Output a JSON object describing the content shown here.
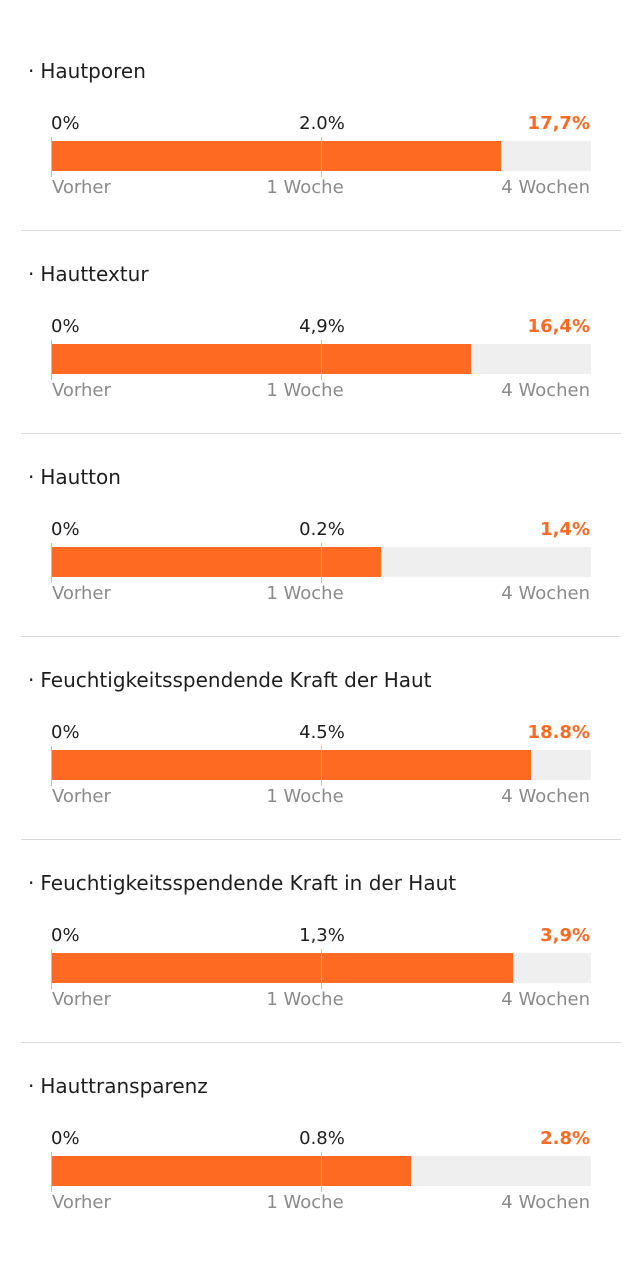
{
  "colors": {
    "accent": "#ff6a23",
    "track": "#efefef",
    "label": "#8a8a8a",
    "divider": "#d9d9d9"
  },
  "bullet": "·",
  "labels": {
    "start": "Vorher",
    "mid": "1 Woche",
    "end": "4 Wochen"
  },
  "chart_data": {
    "type": "bar",
    "orientation": "horizontal",
    "categories": [
      "Vorher",
      "1 Woche",
      "4 Wochen"
    ],
    "series": [
      {
        "name": "Hautporen",
        "values_text": [
          "0%",
          "2.0%",
          "17,7%"
        ],
        "values": [
          0,
          2.0,
          17.7
        ],
        "fill_fraction": 0.833
      },
      {
        "name": "Hauttextur",
        "values_text": [
          "0%",
          "4,9%",
          "16,4%"
        ],
        "values": [
          0,
          4.9,
          16.4
        ],
        "fill_fraction": 0.778
      },
      {
        "name": "Hautton",
        "values_text": [
          "0%",
          "0.2%",
          "1,4%"
        ],
        "values": [
          0,
          0.2,
          1.4
        ],
        "fill_fraction": 0.611
      },
      {
        "name": "Feuchtigkeitsspendende Kraft der Haut",
        "values_text": [
          "0%",
          "4.5%",
          "18.8%"
        ],
        "values": [
          0,
          4.5,
          18.8
        ],
        "fill_fraction": 0.889
      },
      {
        "name": "Feuchtigkeitsspendende Kraft in der Haut",
        "values_text": [
          "0%",
          "1,3%",
          "3,9%"
        ],
        "values": [
          0,
          1.3,
          3.9
        ],
        "fill_fraction": 0.856
      },
      {
        "name": "Hauttransparenz",
        "values_text": [
          "0%",
          "0.8%",
          "2.8%"
        ],
        "values": [
          0,
          0.8,
          2.8
        ],
        "fill_fraction": 0.667
      }
    ]
  }
}
